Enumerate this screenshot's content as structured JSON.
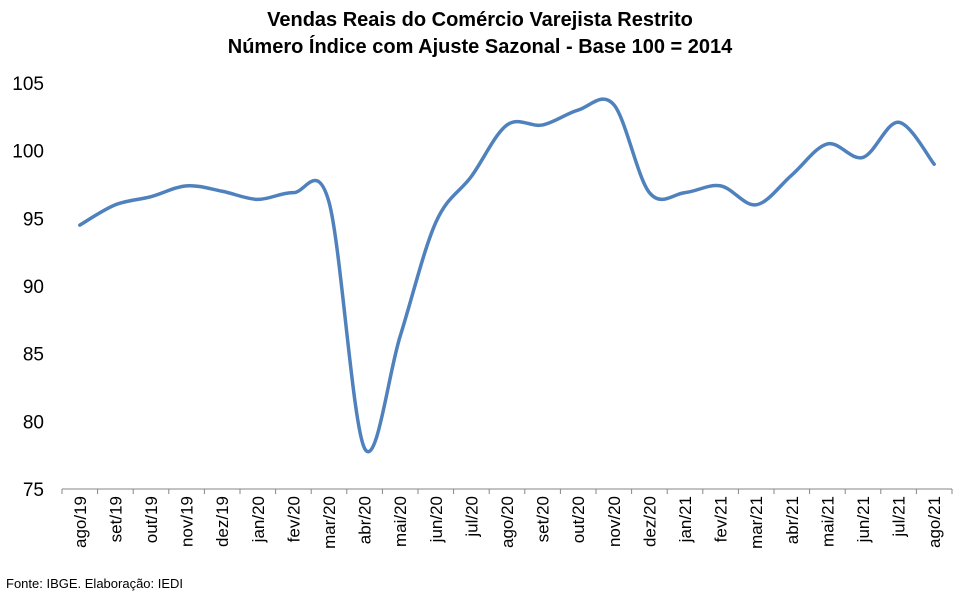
{
  "chart_data": {
    "type": "line",
    "title": "Vendas Reais do Comércio Varejista Restrito",
    "subtitle": "Número Índice com Ajuste Sazonal - Base 100 = 2014",
    "xlabel": "",
    "ylabel": "",
    "ylim": [
      75,
      105
    ],
    "yticks": [
      "75",
      "80",
      "85",
      "90",
      "95",
      "100",
      "105"
    ],
    "grid": false,
    "legend": "none",
    "categories": [
      "ago/19",
      "set/19",
      "out/19",
      "nov/19",
      "dez/19",
      "jan/20",
      "fev/20",
      "mar/20",
      "abr/20",
      "mai/20",
      "jun/20",
      "jul/20",
      "ago/20",
      "set/20",
      "out/20",
      "nov/20",
      "dez/20",
      "jan/21",
      "fev/21",
      "mar/21",
      "abr/21",
      "mai/21",
      "jun/21",
      "jul/21",
      "ago/21"
    ],
    "series": [
      {
        "color": "#4F81BD",
        "values": [
          94.5,
          96.0,
          96.6,
          97.4,
          97.0,
          96.4,
          96.9,
          96.2,
          78.0,
          86.3,
          94.7,
          98.1,
          101.9,
          101.9,
          103.0,
          103.4,
          96.9,
          96.9,
          97.4,
          96.0,
          98.2,
          100.5,
          99.5,
          102.1,
          99.0
        ]
      }
    ]
  },
  "source": "Fonte: IBGE. Elaboração: IEDI"
}
